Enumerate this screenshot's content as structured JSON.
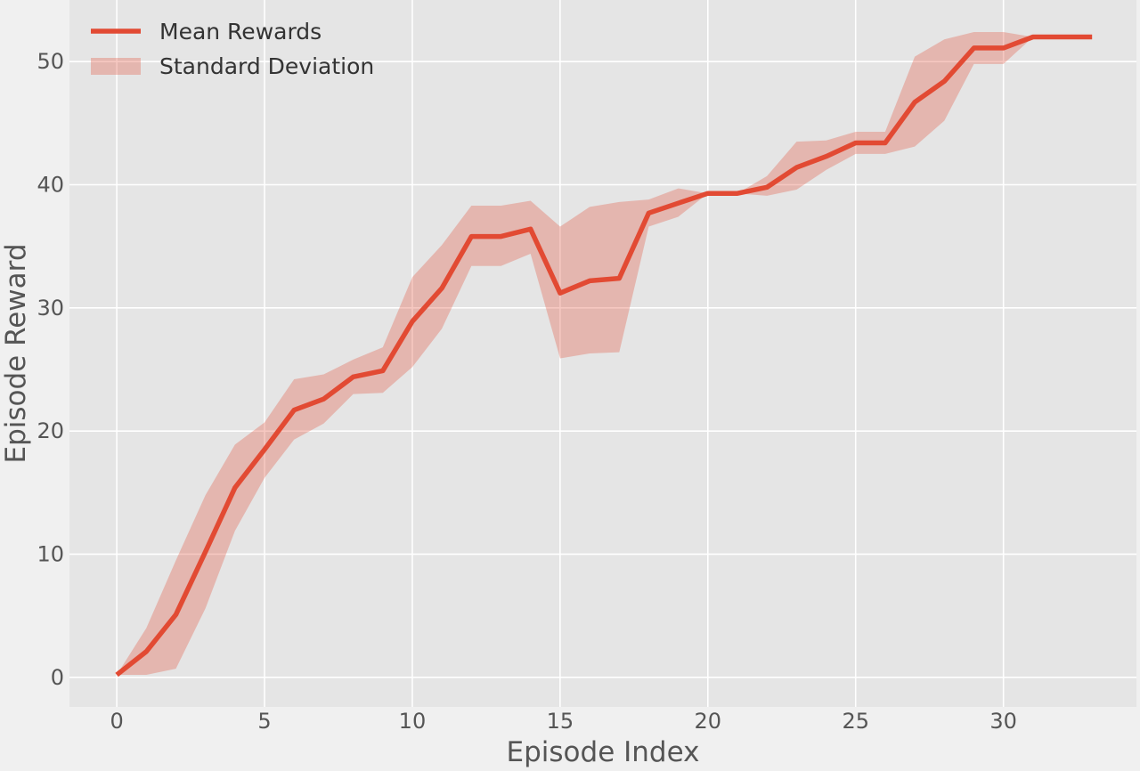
{
  "chart_data": {
    "type": "line",
    "xlabel": "Episode Index",
    "ylabel": "Episode Reward",
    "xlim": [
      -1.6,
      34.5
    ],
    "ylim": [
      -2.4,
      55.0
    ],
    "x_ticks": [
      0,
      5,
      10,
      15,
      20,
      25,
      30
    ],
    "y_ticks": [
      0,
      10,
      20,
      30,
      40,
      50
    ],
    "grid": true,
    "legend_position": "top-left",
    "colors": {
      "line": "#e24a33",
      "band": "#e24a33",
      "plot_background": "#e5e5e5",
      "figure_background": "#f0f0f0",
      "grid": "#ffffff"
    },
    "x": [
      0,
      1,
      2,
      3,
      4,
      5,
      6,
      7,
      8,
      9,
      10,
      11,
      12,
      13,
      14,
      15,
      16,
      17,
      18,
      19,
      20,
      21,
      22,
      23,
      24,
      25,
      26,
      27,
      28,
      29,
      30,
      31,
      32,
      33
    ],
    "series": [
      {
        "name": "Mean Rewards",
        "values": [
          0.2,
          2.1,
          5.1,
          10.2,
          15.4,
          18.5,
          21.7,
          22.6,
          24.4,
          24.9,
          28.9,
          31.6,
          35.8,
          35.8,
          36.4,
          31.2,
          32.2,
          32.4,
          37.7,
          38.5,
          39.3,
          39.3,
          39.8,
          41.4,
          42.3,
          43.4,
          43.4,
          46.7,
          48.4,
          51.1,
          51.1,
          52.0,
          52.0,
          52.0
        ]
      },
      {
        "name": "Standard Deviation",
        "lower": [
          0.2,
          0.2,
          0.7,
          5.6,
          11.9,
          16.2,
          19.3,
          20.6,
          23.0,
          23.1,
          25.2,
          28.3,
          33.4,
          33.4,
          34.4,
          25.9,
          26.3,
          26.4,
          36.6,
          37.4,
          39.3,
          39.3,
          39.1,
          39.6,
          41.2,
          42.5,
          42.5,
          43.1,
          45.2,
          49.8,
          49.8,
          52.0,
          52.0,
          52.0
        ],
        "upper": [
          0.2,
          4.0,
          9.5,
          14.8,
          18.9,
          20.7,
          24.2,
          24.6,
          25.8,
          26.8,
          32.5,
          35.1,
          38.3,
          38.3,
          38.7,
          36.6,
          38.2,
          38.6,
          38.8,
          39.7,
          39.3,
          39.3,
          40.7,
          43.5,
          43.6,
          44.3,
          44.3,
          50.4,
          51.8,
          52.4,
          52.4,
          52.0,
          52.0,
          52.0
        ]
      }
    ]
  }
}
